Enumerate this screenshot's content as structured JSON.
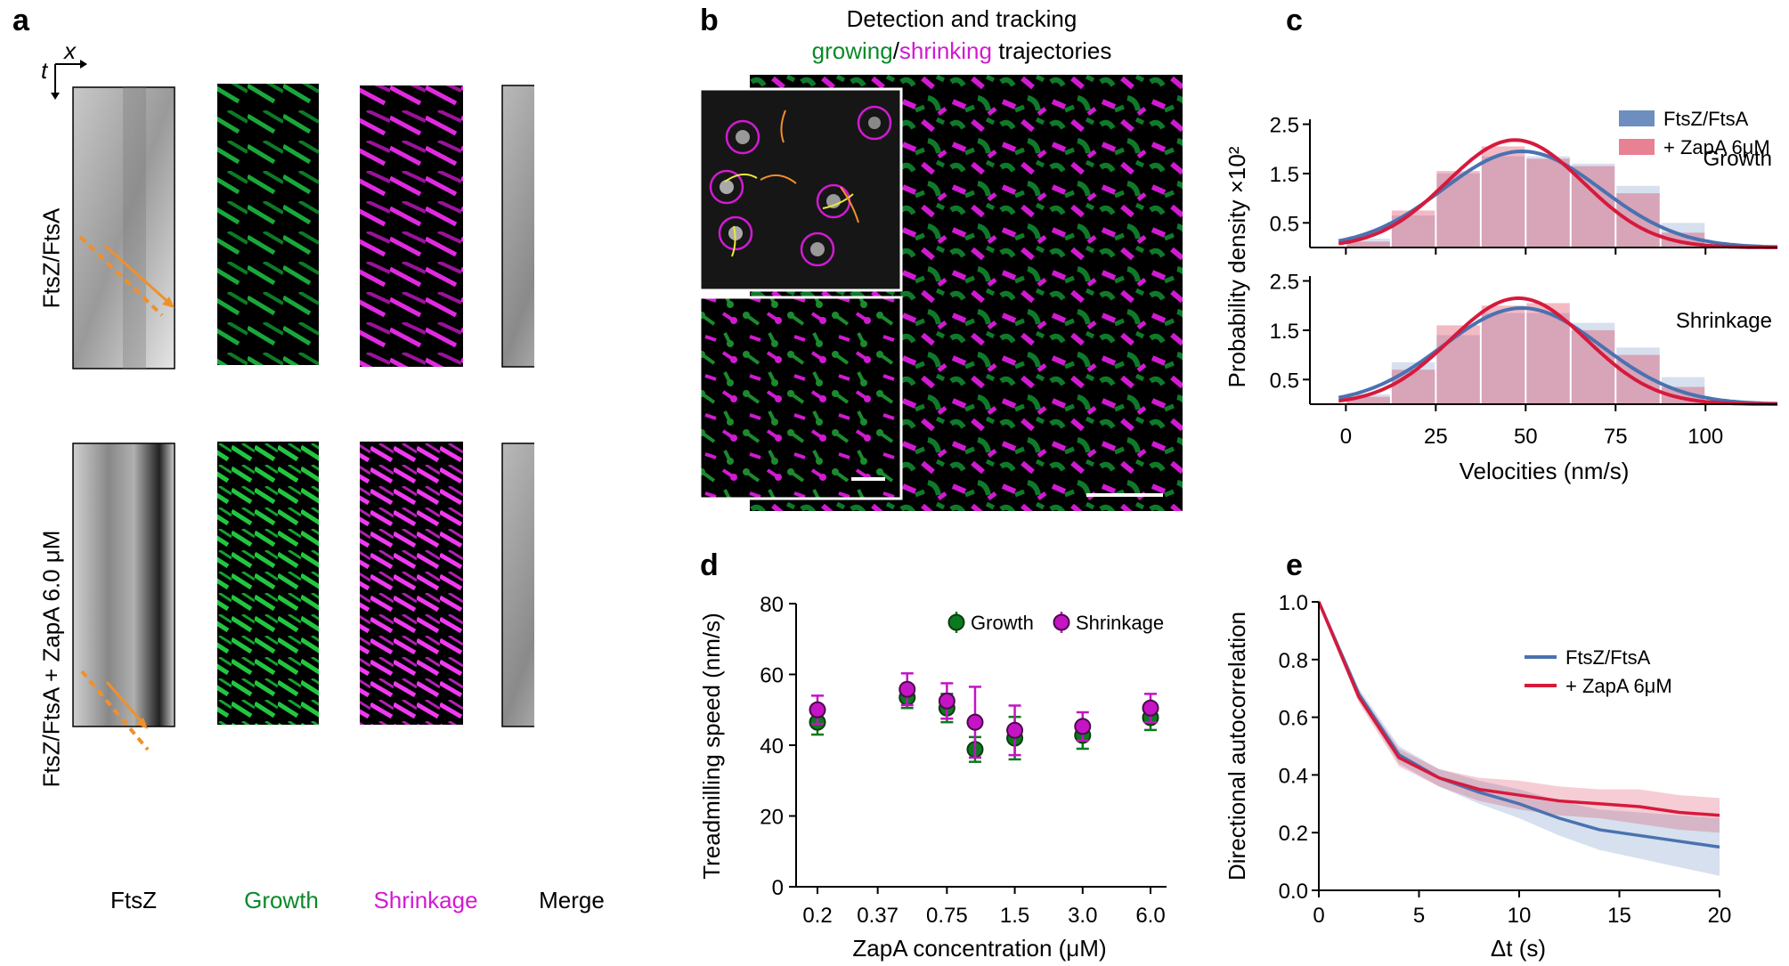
{
  "panels": {
    "a": {
      "label": "a",
      "axis_x": "x",
      "axis_t": "t",
      "row_labels": [
        "FtsZ/FtsA",
        "FtsZ/FtsA + ZapA 6.0 μM"
      ],
      "column_labels": [
        "FtsZ",
        "Growth",
        "Shrinkage",
        "Merge"
      ],
      "colors": {
        "growth": "#0a8a2a",
        "shrinkage": "#d11bd1",
        "arrow": "#f0902a"
      }
    },
    "b": {
      "label": "b",
      "title_line1": "Detection and tracking",
      "title_growing": "growing",
      "title_slash": "/",
      "title_shrinking": "shrinking",
      "title_end": " trajectories"
    },
    "c": {
      "label": "c"
    },
    "d": {
      "label": "d"
    },
    "e": {
      "label": "e"
    }
  },
  "chart_data": [
    {
      "id": "c-growth",
      "type": "bar",
      "title": "Growth",
      "ylabel": "Probability density ×10²",
      "xlabel": "Velocities (nm/s)",
      "xlim": [
        -10,
        120
      ],
      "ylim": [
        0,
        2.6
      ],
      "yticks": [
        0.5,
        1.5,
        2.5
      ],
      "xticks": [
        0,
        25,
        50,
        75,
        100
      ],
      "bin_edges": [
        0,
        12.5,
        25,
        37.5,
        50,
        62.5,
        75,
        87.5,
        100
      ],
      "series": [
        {
          "name": "FtsZ/FtsA",
          "color": "#4a72b0",
          "hist": [
            0.18,
            0.65,
            1.5,
            1.85,
            1.85,
            1.7,
            1.25,
            0.5
          ],
          "fit": {
            "type": "gaussian",
            "mean": 49,
            "sd": 22,
            "peak": 1.95
          }
        },
        {
          "name": "+ ZapA 6μM",
          "color": "#d61a3c",
          "hist": [
            0.12,
            0.75,
            1.55,
            2.05,
            1.8,
            1.65,
            1.1,
            0.3
          ],
          "fit": {
            "type": "gaussian",
            "mean": 47,
            "sd": 19,
            "peak": 2.18
          }
        }
      ]
    },
    {
      "id": "c-shrinkage",
      "type": "bar",
      "title": "Shrinkage",
      "xlim": [
        -10,
        120
      ],
      "ylim": [
        0,
        2.6
      ],
      "yticks": [
        0.5,
        1.5,
        2.5
      ],
      "xticks": [
        0,
        25,
        50,
        75,
        100
      ],
      "bin_edges": [
        0,
        12.5,
        25,
        37.5,
        50,
        62.5,
        75,
        87.5,
        100
      ],
      "series": [
        {
          "name": "FtsZ/FtsA",
          "color": "#4a72b0",
          "hist": [
            0.2,
            0.85,
            1.4,
            1.85,
            1.85,
            1.65,
            1.15,
            0.55
          ],
          "fit": {
            "type": "gaussian",
            "mean": 49,
            "sd": 22,
            "peak": 1.95
          }
        },
        {
          "name": "+ ZapA 6μM",
          "color": "#d61a3c",
          "hist": [
            0.15,
            0.7,
            1.6,
            2.0,
            2.05,
            1.5,
            1.0,
            0.35
          ],
          "fit": {
            "type": "gaussian",
            "mean": 48,
            "sd": 19,
            "peak": 2.15
          }
        }
      ]
    },
    {
      "id": "d",
      "type": "scatter",
      "ylabel": "Treadmilling speed (nm/s)",
      "xlabel": "ZapA concentration (μM)",
      "categories": [
        "0.2",
        "0.37",
        "0.75",
        "1.5",
        "3.0",
        "6.0"
      ],
      "ylim": [
        0,
        80
      ],
      "yticks": [
        0,
        20,
        40,
        60,
        80
      ],
      "series": [
        {
          "name": "Growth",
          "color": "#0b7a1e",
          "edge": "#0b3d10",
          "points": [
            [
              0.2,
              46.5,
              3.5
            ],
            [
              0.5,
              53.5,
              3.0
            ],
            [
              0.75,
              50.5,
              4.0
            ],
            [
              1.0,
              38.8,
              3.5
            ],
            [
              1.5,
              42.0,
              6.0
            ],
            [
              3.0,
              42.8,
              3.8
            ],
            [
              6.0,
              47.8,
              3.5
            ]
          ]
        },
        {
          "name": "Shrinkage",
          "color": "#c414c4",
          "edge": "#4b0a4b",
          "points": [
            [
              0.2,
              50.0,
              4.0
            ],
            [
              0.5,
              55.8,
              4.5
            ],
            [
              0.75,
              52.5,
              5.0
            ],
            [
              1.0,
              46.5,
              10.0
            ],
            [
              1.5,
              44.2,
              7.0
            ],
            [
              3.0,
              45.3,
              4.0
            ],
            [
              6.0,
              50.5,
              4.0
            ]
          ]
        }
      ]
    },
    {
      "id": "e",
      "type": "line",
      "ylabel": "Directional autocorrelation",
      "xlabel": "Δt (s)",
      "xlim": [
        0,
        20
      ],
      "ylim": [
        0,
        1.0
      ],
      "xticks": [
        0,
        5,
        10,
        15,
        20
      ],
      "yticks": [
        0.0,
        0.2,
        0.4,
        0.6,
        0.8,
        1.0
      ],
      "series": [
        {
          "name": "FtsZ/FtsA",
          "color": "#4a72b0",
          "x": [
            0,
            2,
            4,
            6,
            8,
            10,
            12,
            14,
            16,
            18,
            20
          ],
          "y": [
            1.0,
            0.68,
            0.47,
            0.39,
            0.34,
            0.3,
            0.25,
            0.21,
            0.19,
            0.17,
            0.15
          ],
          "band": [
            0.01,
            0.02,
            0.03,
            0.03,
            0.04,
            0.05,
            0.06,
            0.07,
            0.08,
            0.09,
            0.1
          ]
        },
        {
          "name": "+ ZapA 6μM",
          "color": "#d61a3c",
          "x": [
            0,
            2,
            4,
            6,
            8,
            10,
            12,
            14,
            16,
            18,
            20
          ],
          "y": [
            1.0,
            0.67,
            0.46,
            0.39,
            0.35,
            0.33,
            0.31,
            0.3,
            0.29,
            0.27,
            0.26
          ],
          "band": [
            0.01,
            0.02,
            0.03,
            0.03,
            0.04,
            0.05,
            0.05,
            0.05,
            0.06,
            0.06,
            0.06
          ]
        }
      ]
    }
  ]
}
